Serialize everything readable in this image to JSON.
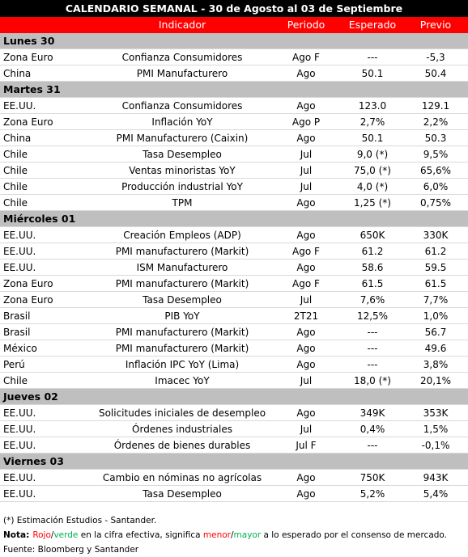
{
  "title": "CALENDARIO SEMANAL - 30 de Agosto al 03 de Septiembre",
  "header": [
    "Indicador",
    "Periodo",
    "Esperado",
    "Previo"
  ],
  "sections": [
    {
      "day": "Lunes 30",
      "rows": [
        [
          "Zona Euro",
          "Confianza Consumidores",
          "Ago F",
          "---",
          "-5,3"
        ],
        [
          "China",
          "PMI Manufacturero",
          "Ago",
          "50.1",
          "50.4"
        ]
      ]
    },
    {
      "day": "Martes 31",
      "rows": [
        [
          "EE.UU.",
          "Confianza Consumidores",
          "Ago",
          "123.0",
          "129.1"
        ],
        [
          "Zona Euro",
          "Inflación YoY",
          "Ago P",
          "2,7%",
          "2,2%"
        ],
        [
          "China",
          "PMI Manufacturero (Caixin)",
          "Ago",
          "50.1",
          "50.3"
        ],
        [
          "Chile",
          "Tasa Desempleo",
          "Jul",
          "9,0 (*)",
          "9,5%"
        ],
        [
          "Chile",
          "Ventas minoristas YoY",
          "Jul",
          "75,0 (*)",
          "65,6%"
        ],
        [
          "Chile",
          "Producción industrial YoY",
          "Jul",
          "4,0 (*)",
          "6,0%"
        ],
        [
          "Chile",
          "TPM",
          "Ago",
          "1,25 (*)",
          "0,75%"
        ]
      ]
    },
    {
      "day": "Miércoles 01",
      "rows": [
        [
          "EE.UU.",
          "Creación Empleos (ADP)",
          "Ago",
          "650K",
          "330K"
        ],
        [
          "EE.UU.",
          "PMI manufacturero (Markit)",
          "Ago F",
          "61.2",
          "61.2"
        ],
        [
          "EE.UU.",
          "ISM Manufacturero",
          "Ago",
          "58.6",
          "59.5"
        ],
        [
          "Zona Euro",
          "PMI manufacturero (Markit)",
          "Ago F",
          "61.5",
          "61.5"
        ],
        [
          "Zona Euro",
          "Tasa Desempleo",
          "Jul",
          "7,6%",
          "7,7%"
        ],
        [
          "Brasil",
          "PIB YoY",
          "2T21",
          "12,5%",
          "1,0%"
        ],
        [
          "Brasil",
          "PMI manufacturero (Markit)",
          "Ago",
          "---",
          "56.7"
        ],
        [
          "México",
          "PMI manufacturero (Markit)",
          "Ago",
          "---",
          "49.6"
        ],
        [
          "Perú",
          "Inflación IPC YoY (Lima)",
          "Ago",
          "---",
          "3,8%"
        ],
        [
          "Chile",
          "Imacec YoY",
          "Jul",
          "18,0  (*)",
          "20,1%"
        ]
      ]
    },
    {
      "day": "Jueves 02",
      "rows": [
        [
          "EE.UU.",
          "Solicitudes iniciales de desempleo",
          "Ago",
          "349K",
          "353K"
        ],
        [
          "EE.UU.",
          "Órdenes industriales",
          "Jul",
          "0,4%",
          "1,5%"
        ],
        [
          "EE.UU.",
          "Órdenes de bienes durables",
          "Jul F",
          "---",
          "-0,1%"
        ]
      ]
    },
    {
      "day": "Viernes 03",
      "rows": [
        [
          "EE.UU.",
          "Cambio en nóminas no agrícolas",
          "Ago",
          "750K",
          "943K"
        ],
        [
          "EE.UU.",
          "Tasa Desempleo",
          "Ago",
          "5,2%",
          "5,4%"
        ]
      ]
    }
  ],
  "footnote": "(*) Estimación Estudios - Santander.",
  "note": {
    "label": "Nota:",
    "parts": [
      "Rojo",
      "/",
      "verde",
      " en la cifra efectiva, significa ",
      "menor",
      "/",
      "mayor",
      " a lo esperado por el consenso de mercado."
    ]
  },
  "source": "Fuente: Bloomberg y Santander"
}
